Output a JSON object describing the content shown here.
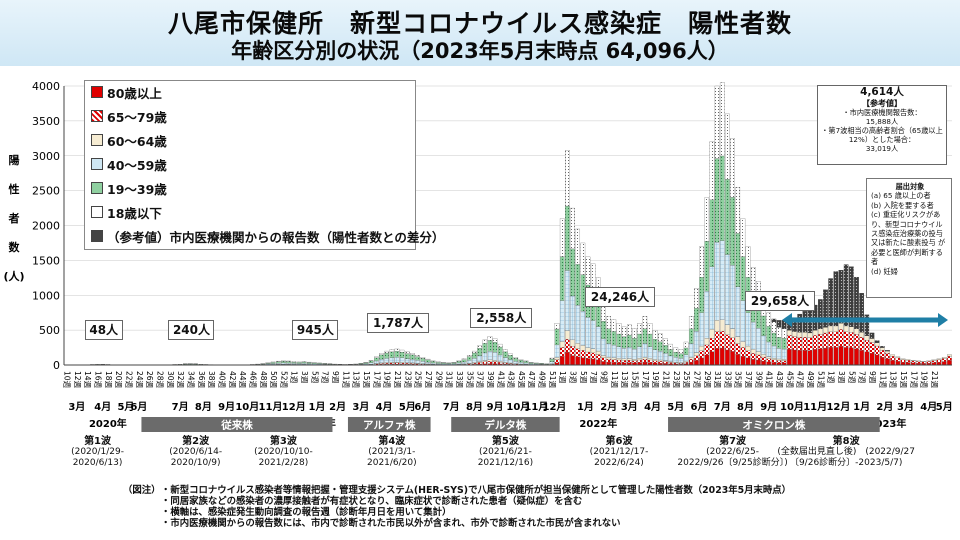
{
  "title": "八尾市保健所　新型コロナウイルス感染症　陽性者数",
  "subtitle": "年齢区分別の状況（2023年5月末時点 64,096人）",
  "chart_data": {
    "type": "bar",
    "stacked": true,
    "ylabel_chars": [
      "陽",
      "性",
      "者",
      "数",
      "(人)"
    ],
    "ylim": [
      0,
      4000
    ],
    "yticks": [
      "0",
      "500",
      "1000",
      "1500",
      "2000",
      "2500",
      "3000",
      "3500",
      "4000"
    ],
    "series": [
      {
        "name": "80歳以上",
        "color": "#e00000",
        "pattern": "solid"
      },
      {
        "name": "65～79歳",
        "color": "#e00000",
        "pattern": "checker"
      },
      {
        "name": "60～64歳",
        "color": "#f6ecd2",
        "pattern": "solid"
      },
      {
        "name": "40～59歳",
        "color": "#cfe7f3",
        "pattern": "grid"
      },
      {
        "name": "19～39歳",
        "color": "#9ad3a6",
        "pattern": "dots"
      },
      {
        "name": "18歳以下",
        "color": "#ffffff",
        "pattern": "dots"
      },
      {
        "name": "（参考値）市内医療機関からの報告数（陽性者数との差分）",
        "color": "#777777",
        "pattern": "dark"
      }
    ],
    "weekly_totals": [
      0,
      0,
      2,
      3,
      5,
      8,
      12,
      10,
      8,
      5,
      4,
      2,
      1,
      1,
      1,
      0,
      0,
      0,
      0,
      0,
      5,
      8,
      12,
      18,
      22,
      18,
      12,
      8,
      6,
      4,
      3,
      2,
      2,
      2,
      2,
      4,
      8,
      14,
      22,
      32,
      44,
      56,
      62,
      58,
      48,
      44,
      50,
      42,
      36,
      30,
      24,
      18,
      14,
      10,
      8,
      10,
      15,
      25,
      40,
      70,
      120,
      170,
      200,
      220,
      230,
      215,
      190,
      170,
      140,
      110,
      85,
      60,
      45,
      38,
      32,
      40,
      60,
      90,
      140,
      200,
      280,
      360,
      410,
      380,
      300,
      220,
      160,
      110,
      80,
      60,
      40,
      30,
      25,
      20,
      100,
      600,
      2100,
      3080,
      2250,
      1950,
      1750,
      1550,
      1450,
      1250,
      850,
      700,
      650,
      600,
      550,
      580,
      520,
      600,
      700,
      600,
      500,
      450,
      380,
      300,
      250,
      220,
      330,
      700,
      1100,
      1700,
      2400,
      3200,
      4000,
      4050,
      3600,
      3250,
      2550,
      2100,
      1700,
      1400,
      1200,
      950,
      750,
      620,
      540,
      520,
      500,
      480,
      470,
      470,
      460,
      500,
      520,
      540,
      560,
      560,
      600,
      560,
      550,
      520,
      470,
      420,
      380,
      320,
      250,
      200,
      150,
      120,
      90,
      80,
      70,
      60,
      55,
      60,
      75,
      90,
      110,
      150
    ],
    "reference_extra": [
      0,
      0,
      0,
      0,
      0,
      0,
      0,
      0,
      0,
      0,
      0,
      0,
      0,
      0,
      0,
      0,
      0,
      0,
      0,
      0,
      0,
      0,
      0,
      0,
      0,
      0,
      0,
      0,
      0,
      0,
      0,
      0,
      0,
      0,
      0,
      0,
      0,
      0,
      0,
      0,
      0,
      0,
      0,
      0,
      0,
      0,
      0,
      0,
      0,
      0,
      0,
      0,
      0,
      0,
      0,
      0,
      0,
      0,
      0,
      0,
      0,
      0,
      0,
      0,
      0,
      0,
      0,
      0,
      0,
      0,
      0,
      0,
      0,
      0,
      0,
      0,
      0,
      0,
      0,
      0,
      0,
      0,
      0,
      0,
      0,
      0,
      0,
      0,
      0,
      0,
      0,
      0,
      0,
      0,
      0,
      0,
      0,
      0,
      0,
      0,
      0,
      0,
      0,
      0,
      0,
      0,
      0,
      0,
      0,
      0,
      0,
      0,
      0,
      0,
      0,
      0,
      0,
      0,
      0,
      0,
      0,
      0,
      0,
      0,
      0,
      0,
      0,
      0,
      0,
      0,
      0,
      0,
      0,
      0,
      0,
      0,
      0,
      40,
      100,
      120,
      160,
      200,
      260,
      300,
      320,
      360,
      420,
      540,
      680,
      780,
      760,
      880,
      860,
      740,
      560,
      300,
      80,
      30,
      20,
      10,
      0,
      0,
      0,
      0,
      0,
      0,
      0,
      0,
      0,
      0,
      0,
      0
    ],
    "callouts": [
      {
        "text": "48人",
        "week": 7,
        "value": 48
      },
      {
        "text": "240人",
        "week": 24,
        "value": 240
      },
      {
        "text": "945人",
        "week": 48,
        "value": 945
      },
      {
        "text": "1,787人",
        "week": 64,
        "value": 1787
      },
      {
        "text": "2,558人",
        "week": 84,
        "value": 2558
      },
      {
        "text": "24,246人",
        "week": 107,
        "value": 24246
      },
      {
        "text": "29,658人",
        "week": 138,
        "value": 29658
      }
    ],
    "month_labels": [
      {
        "text": "3月",
        "w": 2
      },
      {
        "text": "4月",
        "w": 7
      },
      {
        "text": "5月",
        "w": 11.5
      },
      {
        "text": "6月",
        "w": 14
      },
      {
        "text": "7月",
        "w": 22
      },
      {
        "text": "8月",
        "w": 26.5
      },
      {
        "text": "9月",
        "w": 31
      },
      {
        "text": "10月",
        "w": 35
      },
      {
        "text": "11月",
        "w": 39.5
      },
      {
        "text": "12月",
        "w": 44
      },
      {
        "text": "1月",
        "w": 48.5
      },
      {
        "text": "2月",
        "w": 52.5
      },
      {
        "text": "3月",
        "w": 57
      },
      {
        "text": "4月",
        "w": 61.5
      },
      {
        "text": "5月",
        "w": 66
      },
      {
        "text": "6月",
        "w": 69
      },
      {
        "text": "7月",
        "w": 74.5
      },
      {
        "text": "8月",
        "w": 79
      },
      {
        "text": "9月",
        "w": 83
      },
      {
        "text": "10月",
        "w": 87.5
      },
      {
        "text": "11月",
        "w": 91
      },
      {
        "text": "12月",
        "w": 94.5
      },
      {
        "text": "1月",
        "w": 100.5
      },
      {
        "text": "2月",
        "w": 105
      },
      {
        "text": "3月",
        "w": 109
      },
      {
        "text": "4月",
        "w": 113.5
      },
      {
        "text": "5月",
        "w": 118
      },
      {
        "text": "6月",
        "w": 122.5
      },
      {
        "text": "7月",
        "w": 127
      },
      {
        "text": "8月",
        "w": 131.5
      },
      {
        "text": "9月",
        "w": 136
      },
      {
        "text": "10月",
        "w": 140.5
      },
      {
        "text": "11月",
        "w": 145
      },
      {
        "text": "12月",
        "w": 149.5
      },
      {
        "text": "1月",
        "w": 154
      },
      {
        "text": "2月",
        "w": 158.5
      },
      {
        "text": "3月",
        "w": 162.5
      },
      {
        "text": "4月",
        "w": 167
      },
      {
        "text": "5月",
        "w": 170
      }
    ],
    "week_tick_labels": [
      {
        "text": "10週",
        "w": 0
      },
      {
        "text": "12週",
        "w": 2
      },
      {
        "text": "14週",
        "w": 4
      },
      {
        "text": "16週",
        "w": 6
      },
      {
        "text": "18週",
        "w": 8
      },
      {
        "text": "20週",
        "w": 10
      },
      {
        "text": "22週",
        "w": 12
      },
      {
        "text": "24週",
        "w": 14
      },
      {
        "text": "26週",
        "w": 16
      },
      {
        "text": "28週",
        "w": 18
      },
      {
        "text": "30週",
        "w": 20
      },
      {
        "text": "32週",
        "w": 22
      },
      {
        "text": "34週",
        "w": 24
      },
      {
        "text": "36週",
        "w": 26
      },
      {
        "text": "38週",
        "w": 28
      },
      {
        "text": "40週",
        "w": 30
      },
      {
        "text": "42週",
        "w": 32
      },
      {
        "text": "44週",
        "w": 34
      },
      {
        "text": "46週",
        "w": 36
      },
      {
        "text": "48週",
        "w": 38
      },
      {
        "text": "50週",
        "w": 40
      },
      {
        "text": "52週",
        "w": 42
      },
      {
        "text": "1週",
        "w": 44
      },
      {
        "text": "3週",
        "w": 46
      },
      {
        "text": "5週",
        "w": 48
      },
      {
        "text": "7週",
        "w": 50
      },
      {
        "text": "9週",
        "w": 52
      },
      {
        "text": "11週",
        "w": 54
      },
      {
        "text": "13週",
        "w": 56
      },
      {
        "text": "15週",
        "w": 58
      },
      {
        "text": "17週",
        "w": 60
      },
      {
        "text": "19週",
        "w": 62
      },
      {
        "text": "21週",
        "w": 64
      },
      {
        "text": "23週",
        "w": 66
      },
      {
        "text": "25週",
        "w": 68
      },
      {
        "text": "27週",
        "w": 70
      },
      {
        "text": "29週",
        "w": 72
      },
      {
        "text": "31週",
        "w": 74
      },
      {
        "text": "33週",
        "w": 76
      },
      {
        "text": "35週",
        "w": 78
      },
      {
        "text": "37週",
        "w": 80
      },
      {
        "text": "39週",
        "w": 82
      },
      {
        "text": "41週",
        "w": 84
      },
      {
        "text": "43週",
        "w": 86
      },
      {
        "text": "45週",
        "w": 88
      },
      {
        "text": "47週",
        "w": 90
      },
      {
        "text": "49週",
        "w": 92
      },
      {
        "text": "51週",
        "w": 94
      },
      {
        "text": "1週",
        "w": 96
      },
      {
        "text": "3週",
        "w": 98
      },
      {
        "text": "5週",
        "w": 100
      },
      {
        "text": "7週",
        "w": 102
      },
      {
        "text": "9週",
        "w": 104
      },
      {
        "text": "11週",
        "w": 106
      },
      {
        "text": "13週",
        "w": 108
      },
      {
        "text": "15週",
        "w": 110
      },
      {
        "text": "17週",
        "w": 112
      },
      {
        "text": "19週",
        "w": 114
      },
      {
        "text": "21週",
        "w": 116
      },
      {
        "text": "23週",
        "w": 118
      },
      {
        "text": "25週",
        "w": 120
      },
      {
        "text": "27週",
        "w": 122
      },
      {
        "text": "29週",
        "w": 124
      },
      {
        "text": "31週",
        "w": 126
      },
      {
        "text": "33週",
        "w": 128
      },
      {
        "text": "35週",
        "w": 130
      },
      {
        "text": "37週",
        "w": 132
      },
      {
        "text": "39週",
        "w": 134
      },
      {
        "text": "41週",
        "w": 136
      },
      {
        "text": "43週",
        "w": 138
      },
      {
        "text": "45週",
        "w": 140
      },
      {
        "text": "47週",
        "w": 142
      },
      {
        "text": "49週",
        "w": 144
      },
      {
        "text": "51週",
        "w": 146
      },
      {
        "text": "1週",
        "w": 148
      },
      {
        "text": "3週",
        "w": 150
      },
      {
        "text": "5週",
        "w": 152
      },
      {
        "text": "7週",
        "w": 154
      },
      {
        "text": "9週",
        "w": 156
      },
      {
        "text": "11週",
        "w": 158
      },
      {
        "text": "13週",
        "w": 160
      },
      {
        "text": "15週",
        "w": 162
      },
      {
        "text": "17週",
        "w": 164
      },
      {
        "text": "19週",
        "w": 166
      },
      {
        "text": "21週",
        "w": 168
      }
    ],
    "year_labels": [
      {
        "text": "2020年",
        "w": 8
      },
      {
        "text": "2021年",
        "w": 48.5
      },
      {
        "text": "2022年",
        "w": 103
      },
      {
        "text": "2023年",
        "w": 159
      }
    ],
    "variant_bars": [
      {
        "text": "従来株",
        "w0": 15,
        "w1": 52
      },
      {
        "text": "アルファ株",
        "w0": 55,
        "w1": 71
      },
      {
        "text": "デルタ株",
        "w0": 75,
        "w1": 96
      },
      {
        "text": "オミクロン株",
        "w0": 117,
        "w1": 158
      }
    ]
  },
  "legend_labels": [
    "80歳以上",
    "65～79歳",
    "60～64歳",
    "40～59歳",
    "19～39歳",
    "18歳以下",
    "（参考値）市内医療機関からの報告数（陽性者数との差分）"
  ],
  "notes": {
    "total": "4,614人",
    "heading": "【参考値】",
    "line1": "・市内医療機関報告数：",
    "line1_value": "15,888人",
    "line2": "・第7波相当の高齢者割合（65歳以上12%）とした場合：",
    "line2_value": "33,019人"
  },
  "target_box": {
    "title": "届出対象",
    "items": [
      "(a) 65 歳以上の者",
      "(b) 入院を要する者",
      "(c) 重症化リスクがあり、新型コロナウイルス感染症治療薬の投与又は新たに酸素投与 が必要と医師が判断する者",
      "(d) 妊婦"
    ]
  },
  "waves": [
    {
      "name": "第1波",
      "period": "(2020/1/29-\n2020/6/13)",
      "w": 6
    },
    {
      "name": "第2波",
      "period": "(2020/6/14-\n2020/10/9)",
      "w": 25
    },
    {
      "name": "第3波",
      "period": "(2020/10/10-\n2021/2/28)",
      "w": 42
    },
    {
      "name": "第4波",
      "period": "(2021/3/1-\n2021/6/20)",
      "w": 63
    },
    {
      "name": "第5波",
      "period": "(2021/6/21-\n2021/12/16)",
      "w": 85
    },
    {
      "name": "第6波",
      "period": "(2021/12/17-\n2022/6/24)",
      "w": 107
    },
    {
      "name": "第7波",
      "period": "(2022/6/25-\n2022/9/26〔9/25診断分〕)",
      "w": 129
    },
    {
      "name": "第8波",
      "period": "(全数届出見直し後)　(2022/9/27\n〔9/26診断分〕-2023/5/7)",
      "w": 151
    }
  ],
  "footer": {
    "label": "（図注）",
    "lines": [
      "・新型コロナウイルス感染者等情報把握・管理支援システム(HER-SYS)で八尾市保健所が担当保健所として管理した陽性者数（2023年5月末時点）",
      "・同居家族などの感染者の濃厚接触者が有症状となり、臨床症状で診断された患者（疑似症）を含む",
      "・横軸は、感染症発生動向調査の報告週（診断年月日を用いて集計）",
      "・市内医療機関からの報告数には、市内で診断された市民以外が含まれ、市外で診断された市民が含まれない"
    ]
  }
}
